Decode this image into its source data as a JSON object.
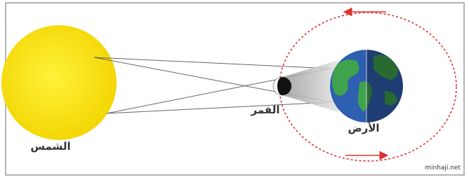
{
  "labels": {
    "sun": "الشمس",
    "moon": "القمر",
    "earth": "الأرض"
  },
  "watermark": "minhaji.net"
}
